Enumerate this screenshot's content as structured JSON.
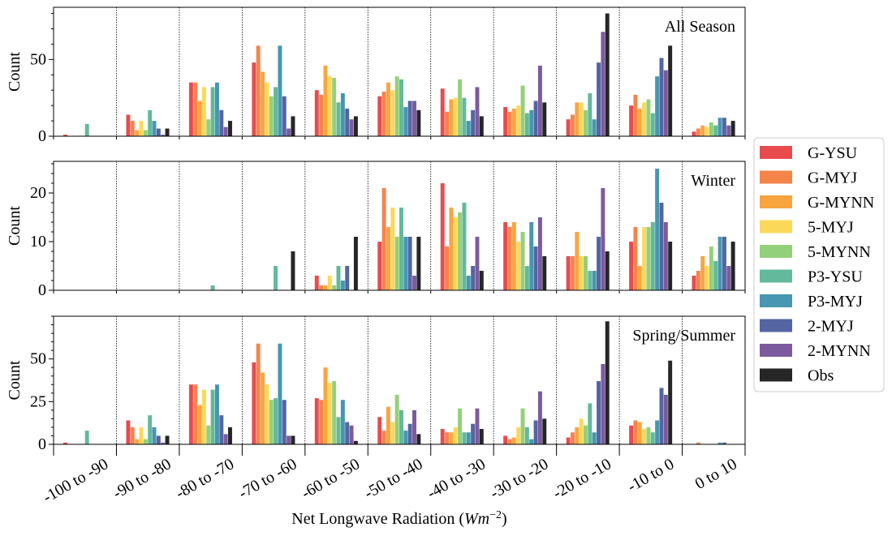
{
  "chart_data": {
    "type": "bar",
    "xlabel": "Net Longwave Radiation ($Wm^{-2}$)",
    "xlabel_parts": {
      "text": "Net Longwave Radiation (",
      "math_main": "Wm",
      "math_sup": "−2",
      "close": ")"
    },
    "categories": [
      "-100 to -90",
      "-90 to -80",
      "-80 to -70",
      "-70 to -60",
      "-60 to -50",
      "-50 to -40",
      "-40 to -30",
      "-30 to -20",
      "-20 to -10",
      "-10 to 0",
      "0 to 10"
    ],
    "legend_position": "right",
    "series_names": [
      "G-YSU",
      "G-MYJ",
      "G-MYNN",
      "5-MYJ",
      "5-MYNN",
      "P3-YSU",
      "P3-MYJ",
      "2-MYJ",
      "2-MYNN",
      "Obs"
    ],
    "colors": [
      "#e84b4d",
      "#f5844a",
      "#f9a53f",
      "#fad95a",
      "#93d07b",
      "#62b99b",
      "#4796b2",
      "#5565a3",
      "#7b5b9d",
      "#262626"
    ],
    "grid": "vertical dotted separators between bins",
    "panels": [
      {
        "title": "All Season",
        "ylabel": "Count",
        "ylim": [
          0,
          84
        ],
        "yticks": [
          0,
          50
        ],
        "values": [
          [
            1,
            14,
            35,
            48,
            30,
            26,
            31,
            19,
            11,
            20,
            3
          ],
          [
            0,
            10,
            35,
            59,
            27,
            29,
            16,
            16,
            14,
            27,
            5
          ],
          [
            0,
            4,
            23,
            42,
            46,
            35,
            24,
            18,
            22,
            18,
            7
          ],
          [
            0,
            10,
            32,
            35,
            39,
            30,
            25,
            20,
            22,
            22,
            6
          ],
          [
            0,
            4,
            11,
            26,
            38,
            39,
            37,
            33,
            17,
            24,
            9
          ],
          [
            8,
            17,
            32,
            32,
            22,
            37,
            25,
            15,
            28,
            15,
            7
          ],
          [
            0,
            10,
            35,
            59,
            28,
            19,
            10,
            17,
            11,
            39,
            12
          ],
          [
            0,
            5,
            17,
            26,
            18,
            23,
            17,
            23,
            48,
            51,
            12
          ],
          [
            0,
            1,
            6,
            5,
            11,
            23,
            32,
            46,
            68,
            43,
            7
          ],
          [
            0,
            5,
            10,
            13,
            13,
            17,
            13,
            22,
            80,
            59,
            10
          ]
        ]
      },
      {
        "title": "Winter",
        "ylabel": "Count",
        "ylim": [
          0,
          26.5
        ],
        "yticks": [
          0,
          10,
          20
        ],
        "values": [
          [
            0,
            0,
            0,
            0,
            3,
            10,
            22,
            14,
            7,
            10,
            3
          ],
          [
            0,
            0,
            0,
            0,
            1,
            21,
            9,
            13,
            7,
            13,
            4
          ],
          [
            0,
            0,
            0,
            0,
            1,
            13,
            17,
            14,
            12,
            5,
            7
          ],
          [
            0,
            0,
            0,
            0,
            3,
            17,
            15,
            10,
            7,
            13,
            5
          ],
          [
            0,
            0,
            0,
            0,
            1,
            11,
            16,
            12,
            7,
            13,
            9
          ],
          [
            0,
            0,
            1,
            5,
            5,
            17,
            18,
            5,
            4,
            14,
            6
          ],
          [
            0,
            0,
            0,
            0,
            2,
            11,
            3,
            14,
            4,
            25,
            11
          ],
          [
            0,
            0,
            0,
            0,
            5,
            11,
            5,
            9,
            11,
            18,
            11
          ],
          [
            0,
            0,
            0,
            0,
            0,
            3,
            11,
            15,
            21,
            14,
            5
          ],
          [
            0,
            0,
            0,
            8,
            11,
            11,
            4,
            7,
            8,
            10,
            10
          ]
        ]
      },
      {
        "title": "Spring/Summer",
        "ylabel": "Count",
        "ylim": [
          0,
          75
        ],
        "yticks": [
          0,
          25,
          50
        ],
        "values": [
          [
            1,
            14,
            35,
            48,
            27,
            16,
            9,
            5,
            4,
            11,
            0
          ],
          [
            0,
            10,
            35,
            59,
            26,
            8,
            7,
            3,
            7,
            14,
            1
          ],
          [
            0,
            3,
            23,
            42,
            45,
            22,
            7,
            4,
            10,
            13,
            0
          ],
          [
            0,
            10,
            32,
            35,
            36,
            13,
            10,
            10,
            15,
            9,
            0
          ],
          [
            0,
            3,
            11,
            26,
            37,
            29,
            21,
            21,
            11,
            10,
            0
          ],
          [
            8,
            17,
            32,
            27,
            16,
            20,
            7,
            10,
            24,
            7,
            0
          ],
          [
            0,
            10,
            35,
            59,
            26,
            8,
            7,
            3,
            7,
            14,
            1
          ],
          [
            0,
            5,
            17,
            26,
            13,
            12,
            12,
            14,
            37,
            33,
            1
          ],
          [
            0,
            1,
            6,
            5,
            11,
            20,
            21,
            31,
            47,
            29,
            0
          ],
          [
            0,
            5,
            10,
            5,
            2,
            6,
            9,
            15,
            72,
            49,
            0
          ]
        ]
      }
    ]
  }
}
